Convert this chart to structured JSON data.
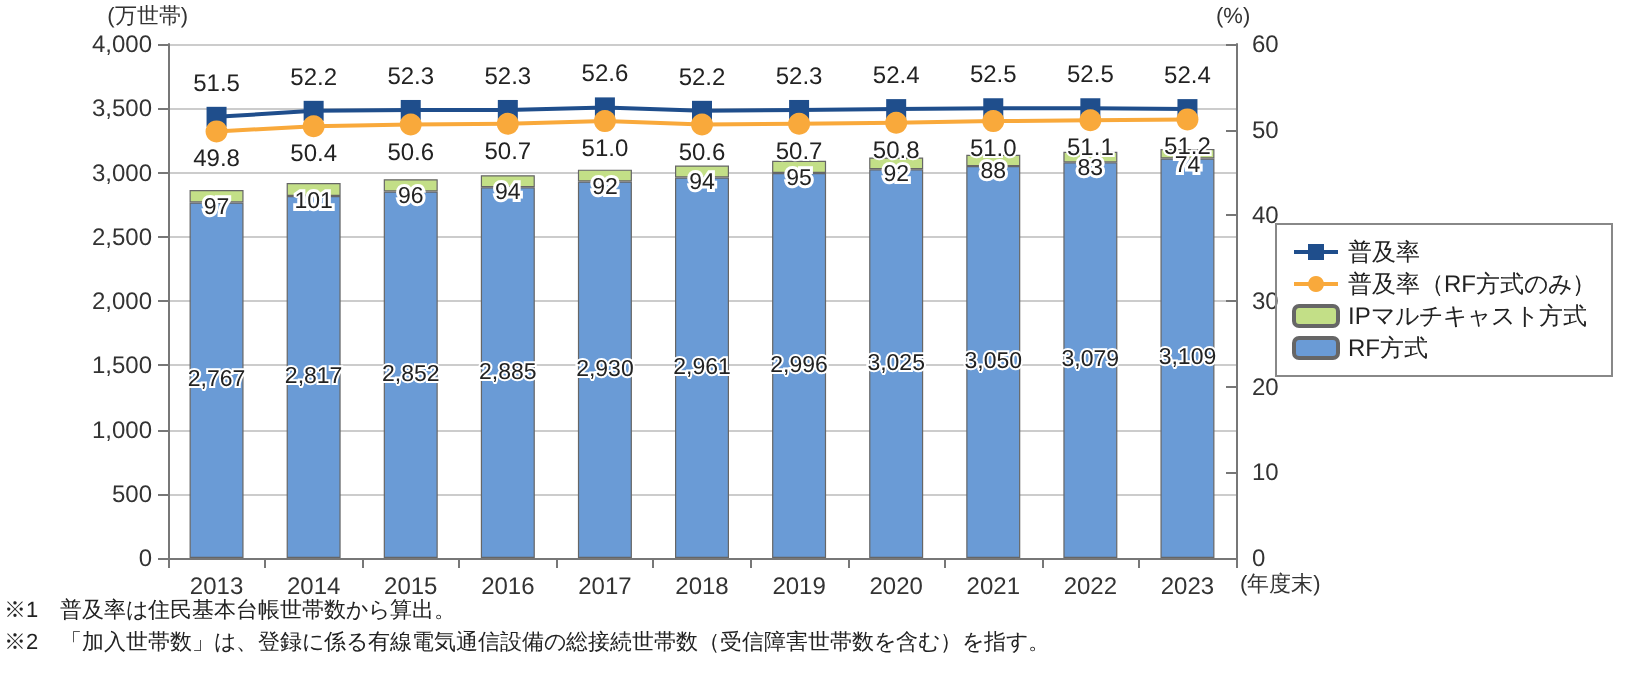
{
  "chart_data": {
    "type": "bar",
    "stacked": true,
    "categories": [
      "2013",
      "2014",
      "2015",
      "2016",
      "2017",
      "2018",
      "2019",
      "2020",
      "2021",
      "2022",
      "2023"
    ],
    "xlabel": "(年度末)",
    "ylabel": "(万世帯)",
    "y2label": "(%)",
    "ylim": [
      0,
      4000
    ],
    "yticks": [
      {
        "value": 0,
        "label": "0"
      },
      {
        "value": 500,
        "label": "500"
      },
      {
        "value": 1000,
        "label": "1,000"
      },
      {
        "value": 1500,
        "label": "1,500"
      },
      {
        "value": 2000,
        "label": "2,000"
      },
      {
        "value": 2500,
        "label": "2,500"
      },
      {
        "value": 3000,
        "label": "3,000"
      },
      {
        "value": 3500,
        "label": "3,500"
      },
      {
        "value": 4000,
        "label": "4,000"
      }
    ],
    "y2lim": [
      0,
      60
    ],
    "y2ticks": [
      0,
      10,
      20,
      30,
      40,
      50,
      60
    ],
    "grid": "y",
    "legend": "right",
    "data_labels": true,
    "series": [
      {
        "name": "RF方式",
        "color": "#6a9bd6",
        "values": [
          2767,
          2817,
          2852,
          2885,
          2930,
          2961,
          2996,
          3025,
          3050,
          3079,
          3109
        ],
        "value_labels": [
          "2,767",
          "2,817",
          "2,852",
          "2,885",
          "2,930",
          "2,961",
          "2,996",
          "3,025",
          "3,050",
          "3,079",
          "3,109"
        ]
      },
      {
        "name": "IPマルチキャスト方式",
        "color": "#c3df87",
        "values": [
          97,
          101,
          96,
          94,
          92,
          94,
          95,
          92,
          88,
          83,
          74
        ]
      },
      {
        "name": "普及率",
        "type": "line",
        "axis": "y2",
        "marker": "square",
        "color": "#1f4e8c",
        "values": [
          51.5,
          52.2,
          52.3,
          52.3,
          52.6,
          52.2,
          52.3,
          52.4,
          52.5,
          52.5,
          52.4
        ],
        "value_labels": [
          "51.5",
          "52.2",
          "52.3",
          "52.3",
          "52.6",
          "52.2",
          "52.3",
          "52.4",
          "52.5",
          "52.5",
          "52.4"
        ]
      },
      {
        "name": "普及率（RF方式のみ）",
        "type": "line",
        "axis": "y2",
        "marker": "circle",
        "color": "#f9a93b",
        "values": [
          49.8,
          50.4,
          50.6,
          50.7,
          51.0,
          50.6,
          50.7,
          50.8,
          51.0,
          51.1,
          51.2
        ],
        "value_labels": [
          "49.8",
          "50.4",
          "50.6",
          "50.7",
          "51.0",
          "50.6",
          "50.7",
          "50.8",
          "51.0",
          "51.1",
          "51.2"
        ]
      }
    ],
    "annotations": [
      "※1　普及率は住民基本台帳世帯数から算出。",
      "※2　「加入世帯数」は、登録に係る有線電気通信設備の総接続世帯数（受信障害世帯数を含む）を指す。"
    ]
  }
}
